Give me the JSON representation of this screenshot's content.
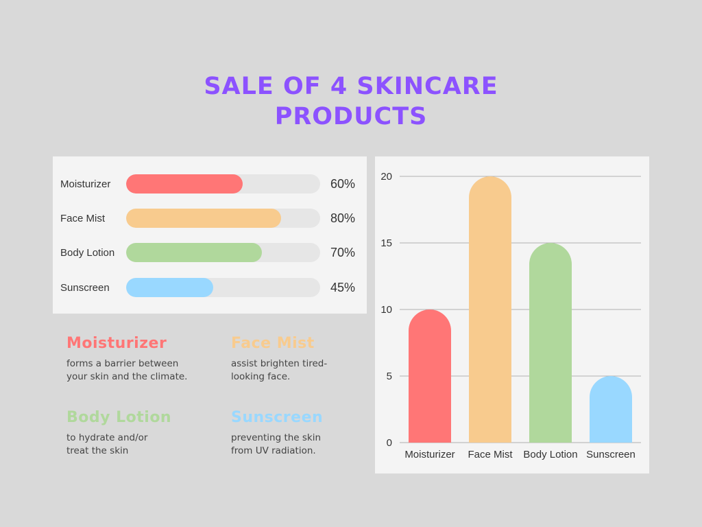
{
  "title": {
    "line1": "SALE OF 4 SKINCARE",
    "line2": "PRODUCTS",
    "color": "#8c52ff"
  },
  "progress": {
    "items": [
      {
        "label": "Moisturizer",
        "value": 60,
        "percent_text": "60%",
        "color": "#ff7676"
      },
      {
        "label": "Face Mist",
        "value": 80,
        "percent_text": "80%",
        "color": "#f8cb8e"
      },
      {
        "label": "Body Lotion",
        "value": 70,
        "percent_text": "70%",
        "color": "#b0d89c"
      },
      {
        "label": "Sunscreen",
        "value": 45,
        "percent_text": "45%",
        "color": "#99d8ff"
      }
    ],
    "track_color": "#e6e6e6"
  },
  "descriptions": [
    {
      "title": "Moisturizer",
      "text": "forms a barrier between\nyour skin and the climate.",
      "color": "#ff7676"
    },
    {
      "title": "Face Mist",
      "text": "assist brighten tired-\nlooking face.",
      "color": "#f8cb8e"
    },
    {
      "title": "Body Lotion",
      "text": "to hydrate and/or\ntreat the skin",
      "color": "#b0d89c"
    },
    {
      "title": "Sunscreen",
      "text": "preventing the skin\nfrom UV radiation.",
      "color": "#99d8ff"
    }
  ],
  "chart_data": {
    "type": "bar",
    "categories": [
      "Moisturizer",
      "Face Mist",
      "Body Lotion",
      "Sunscreen"
    ],
    "values": [
      10,
      20,
      15,
      5
    ],
    "colors": [
      "#ff7676",
      "#f8cb8e",
      "#b0d89c",
      "#99d8ff"
    ],
    "title": "",
    "xlabel": "",
    "ylabel": "",
    "ylim": [
      0,
      20
    ],
    "yticks": [
      0,
      5,
      10,
      15,
      20
    ],
    "grid": true
  }
}
